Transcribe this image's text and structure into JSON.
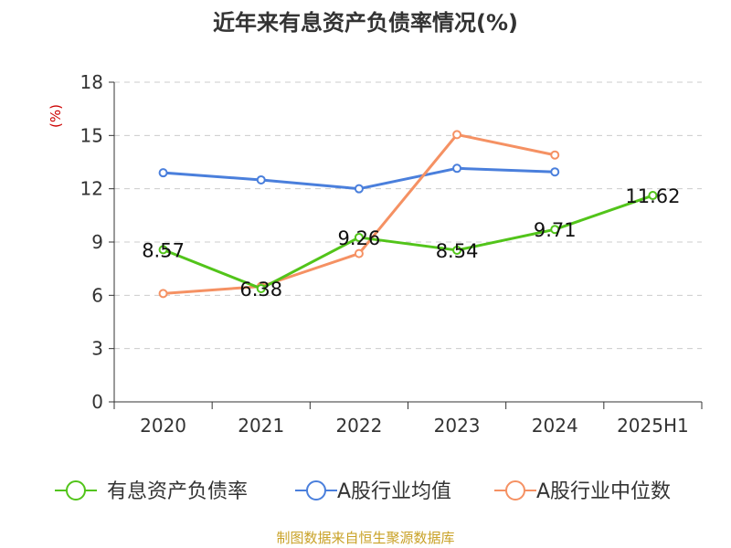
{
  "chart_data": {
    "type": "line",
    "title": "近年来有息资产负债率情况(%)",
    "ylabel": "(%)",
    "xlabel": "",
    "categories": [
      "2020",
      "2021",
      "2022",
      "2023",
      "2024",
      "2025H1"
    ],
    "ylim": [
      0,
      18
    ],
    "yticks": [
      0,
      3,
      6,
      9,
      12,
      15,
      18
    ],
    "grid": true,
    "legend_position": "bottom",
    "series": [
      {
        "name": "有息资产负债率",
        "color": "#52c41a",
        "values": [
          8.57,
          6.38,
          9.26,
          8.54,
          9.71,
          11.62
        ],
        "labels": [
          "8.57",
          "6.38",
          "9.26",
          "8.54",
          "9.71",
          "11.62"
        ]
      },
      {
        "name": "A股行业均值",
        "color": "#4a7fdc",
        "values": [
          12.9,
          12.5,
          12.0,
          13.15,
          12.95,
          null
        ]
      },
      {
        "name": "A股行业中位数",
        "color": "#f59163",
        "values": [
          6.1,
          6.5,
          8.35,
          15.05,
          13.9,
          null
        ]
      }
    ],
    "source": "制图数据来自恒生聚源数据库"
  }
}
